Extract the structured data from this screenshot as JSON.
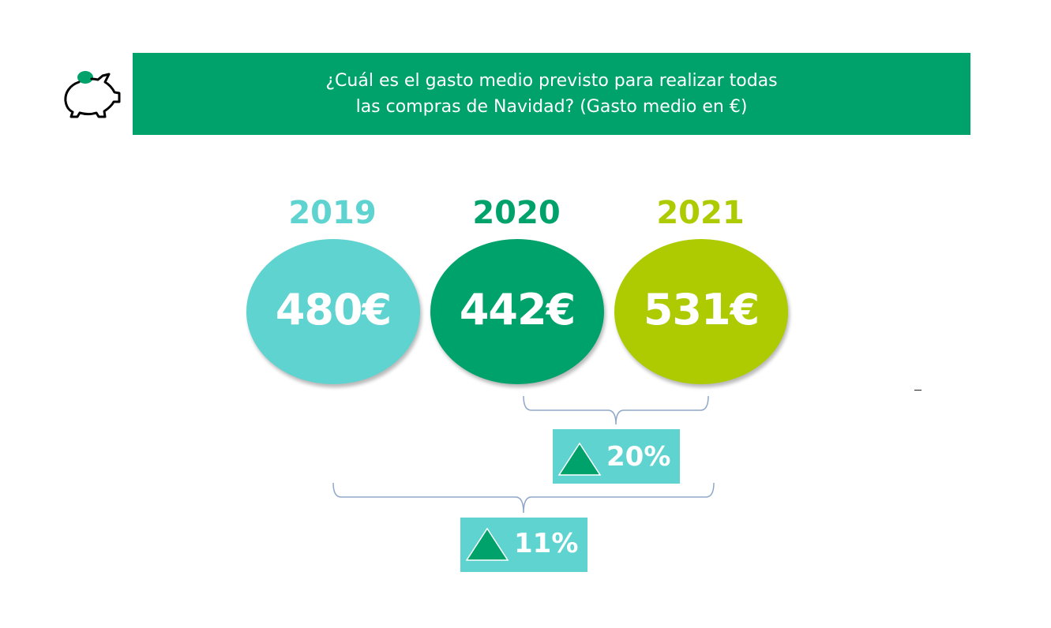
{
  "header": {
    "line1": "¿Cuál es el gasto medio previsto para realizar todas",
    "line2": "las compras de Navidad? (Gasto medio en €)",
    "color": "#00A26B"
  },
  "icon": {
    "name": "piggy-bank-icon",
    "coin_color": "#00A26B"
  },
  "chart_data": {
    "type": "bubble-comparison",
    "categories": [
      "2019",
      "2020",
      "2021"
    ],
    "values": [
      480,
      442,
      531
    ],
    "labels": [
      "480€",
      "442€",
      "531€"
    ],
    "colors": [
      "#5ED3CF",
      "#00A26B",
      "#ADCB00"
    ],
    "changes": [
      {
        "from": "2020",
        "to": "2021",
        "label": "20%",
        "direction": "up"
      },
      {
        "from": "2019",
        "to": "2021",
        "label": "11%",
        "direction": "up"
      }
    ]
  },
  "change_box_color": "#5ED3CF",
  "triangle_color": "#00A26B"
}
